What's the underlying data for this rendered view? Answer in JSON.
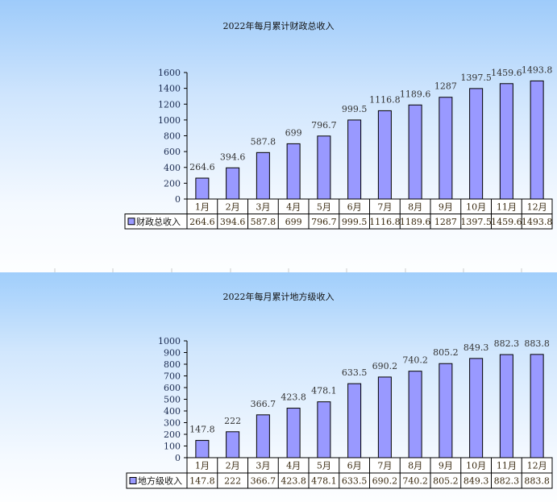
{
  "chart_data": [
    {
      "type": "bar",
      "title": "2022年每月累计财政总收入",
      "categories": [
        "1月",
        "2月",
        "3月",
        "4月",
        "5月",
        "6月",
        "7月",
        "8月",
        "9月",
        "10月",
        "11月",
        "12月"
      ],
      "series": [
        {
          "name": "财政总收入",
          "values": [
            264.6,
            394.6,
            587.8,
            699,
            796.7,
            999.5,
            1116.8,
            1189.6,
            1287,
            1397.5,
            1459.6,
            1493.8
          ]
        }
      ],
      "value_labels": [
        "264.6",
        "394.6",
        "587.8",
        "699",
        "796.7",
        "999.5",
        "1116.8",
        "1189.6",
        "1287",
        "1397.5",
        "1459.6",
        "1493.8"
      ],
      "ylim": [
        0,
        1600
      ],
      "yticks": [
        0,
        200,
        400,
        600,
        800,
        1000,
        1200,
        1400,
        1600
      ],
      "data_table": true,
      "bar_color": "#9999ff"
    },
    {
      "type": "bar",
      "title": "2022年每月累计地方级收入",
      "categories": [
        "1月",
        "2月",
        "3月",
        "4月",
        "5月",
        "6月",
        "7月",
        "8月",
        "9月",
        "10月",
        "11月",
        "12月"
      ],
      "series": [
        {
          "name": "地方级收入",
          "values": [
            147.8,
            222,
            366.7,
            423.8,
            478.1,
            633.5,
            690.2,
            740.2,
            805.2,
            849.3,
            882.3,
            883.8
          ]
        }
      ],
      "value_labels": [
        "147.8",
        "222",
        "366.7",
        "423.8",
        "478.1",
        "633.5",
        "690.2",
        "740.2",
        "805.2",
        "849.3",
        "882.3",
        "883.8"
      ],
      "ylim": [
        0,
        1000
      ],
      "yticks": [
        0,
        100,
        200,
        300,
        400,
        500,
        600,
        700,
        800,
        900,
        1000
      ],
      "data_table": true,
      "bar_color": "#9999ff"
    }
  ]
}
